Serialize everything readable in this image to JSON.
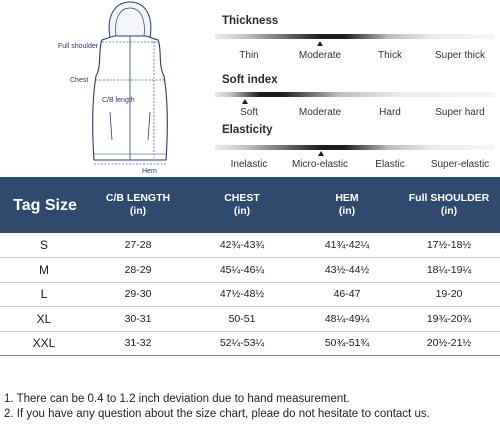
{
  "diagram": {
    "labels": {
      "full_shoulder": "Full shoulder",
      "chest": "Chest",
      "cb_length": "C/B length",
      "hem": "Hem"
    }
  },
  "scales": [
    {
      "title": "Thickness",
      "options": [
        "Thin",
        "Moderate",
        "Thick",
        "Super thick"
      ],
      "selected": "Moderate"
    },
    {
      "title": "Soft index",
      "options": [
        "Soft",
        "Moderate",
        "Hard",
        "Super hard"
      ],
      "selected": "Soft"
    },
    {
      "title": "Elasticity",
      "options": [
        "Inelastic",
        "Micro-elastic",
        "Elastic",
        "Super-elastic"
      ],
      "selected": "Micro-elastic"
    }
  ],
  "table": {
    "headers": [
      {
        "line1": "Tag Size",
        "line2": ""
      },
      {
        "line1": "C/B LENGTH",
        "line2": "(in)"
      },
      {
        "line1": "CHEST",
        "line2": "(in)"
      },
      {
        "line1": "HEM",
        "line2": "(in)"
      },
      {
        "line1": "Full SHOULDER",
        "line2": "(in)"
      }
    ],
    "rows": [
      [
        "S",
        "27-28",
        "42¾-43¾",
        "41¾-42¼",
        "17½-18½"
      ],
      [
        "M",
        "28-29",
        "45¼-46¼",
        "43½-44½",
        "18¼-19¼"
      ],
      [
        "L",
        "29-30",
        "47½-48½",
        "46-47",
        "19-20"
      ],
      [
        "XL",
        "30-31",
        "50-51",
        "48¼-49¼",
        "19¾-20¾"
      ],
      [
        "XXL",
        "31-32",
        "52¼-53¼",
        "50¾-51¾",
        "20½-21½"
      ]
    ]
  },
  "notes": [
    "1. There can be 0.4 to 1.2 inch deviation due to hand measurement.",
    "2. If you have any question about the size chart, pleae do not hesitate to contact us."
  ],
  "colors": {
    "header_bg": "#2f4a6d",
    "header_text": "#ffffff",
    "diagram_line": "#2a3b66"
  }
}
